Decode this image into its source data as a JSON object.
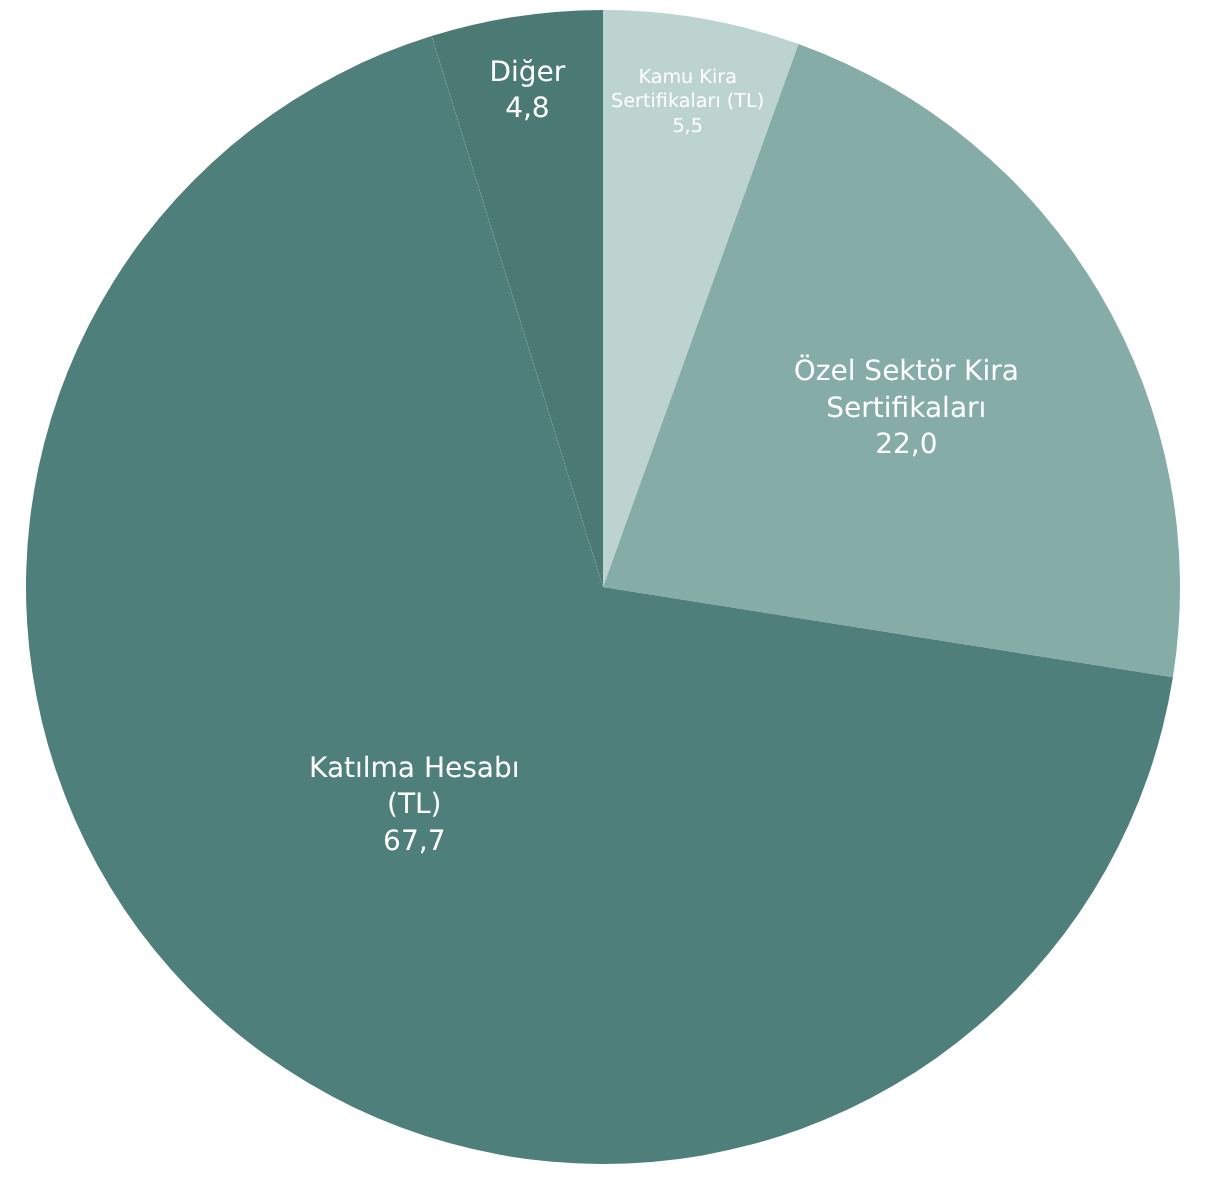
{
  "chart_data": {
    "type": "pie",
    "categories": [
      "Kamu Kira Sertifikaları (TL)",
      "Özel Sektör Kira Sertifikaları",
      "Katılma Hesabı (TL)",
      "Diğer"
    ],
    "values": [
      5.5,
      22.0,
      67.7,
      4.8
    ],
    "value_labels": [
      "5,5",
      "22,0",
      "67,7",
      "4,8"
    ],
    "colors": [
      "#bcd3cf",
      "#86aca7",
      "#4f7f7b",
      "#4b7a74"
    ],
    "legend": false
  }
}
